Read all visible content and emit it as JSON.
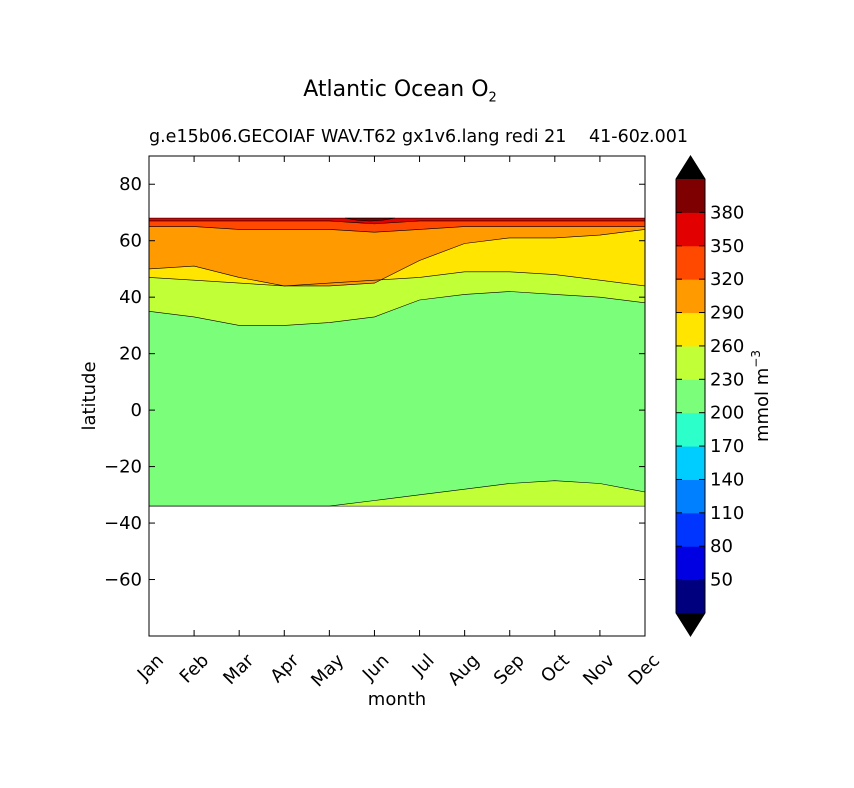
{
  "chart_data": {
    "type": "heatmap",
    "plot_kind": "filled contour",
    "title_main": "Atlantic Ocean O",
    "title_sub": "2",
    "subtitle_left": "g.e15b06.GECOIAF WAV.T62 gx1v6.lang redi 21",
    "subtitle_right": "41-60z.001",
    "xlabel": "month",
    "ylabel": "latitude",
    "x_categories": [
      "Jan",
      "Feb",
      "Mar",
      "Apr",
      "May",
      "Jun",
      "Jul",
      "Aug",
      "Sep",
      "Oct",
      "Nov",
      "Dec"
    ],
    "x_range": [
      0,
      11
    ],
    "ylim": [
      -80,
      90
    ],
    "y_ticks": [
      80,
      60,
      40,
      20,
      0,
      -20,
      -40,
      -60
    ],
    "y_tick_labels": [
      "80",
      "60",
      "40",
      "20",
      "0",
      "−20",
      "−40",
      "−60"
    ],
    "colorbar": {
      "label": "mmol m",
      "label_exponent": "−3",
      "levels": [
        20,
        50,
        80,
        110,
        140,
        170,
        200,
        230,
        260,
        290,
        320,
        350,
        380,
        410
      ],
      "tick_labels": [
        "50",
        "80",
        "110",
        "140",
        "170",
        "200",
        "230",
        "260",
        "290",
        "320",
        "350",
        "380"
      ],
      "colors": [
        "#00007f",
        "#0000e3",
        "#0035ff",
        "#0080ff",
        "#00cdff",
        "#2cffca",
        "#7bff7b",
        "#c1ff36",
        "#ffe500",
        "#ff9a00",
        "#ff4800",
        "#e30000",
        "#7f0000"
      ],
      "extend_low_color": "#000000",
      "extend_high_color": "#000000"
    },
    "fields": {
      "x": [
        0,
        1,
        2,
        3,
        4,
        5,
        6,
        7,
        8,
        9,
        10,
        11
      ],
      "data_south_boundary_lat": -34,
      "data_north_boundary_lat": 68,
      "boundary_200_230": [
        -34,
        -34,
        -34,
        -34,
        -34,
        -32,
        -30,
        -28,
        -26,
        -25,
        -26,
        -29
      ],
      "boundary_230_260": [
        35,
        33,
        30,
        30,
        31,
        33,
        39,
        41,
        42,
        41,
        40,
        38
      ],
      "boundary_260_290": [
        47,
        46,
        45,
        44,
        45,
        46,
        47,
        49,
        49,
        48,
        46,
        44
      ],
      "boundary_290_320": [
        50,
        51,
        47,
        44,
        44,
        45,
        53,
        59,
        61,
        61,
        62,
        64
      ],
      "boundary_320_350": [
        65,
        65,
        64,
        64,
        64,
        63,
        64,
        65,
        65,
        65,
        65,
        65
      ],
      "boundary_350_380": [
        67,
        67,
        67,
        67,
        67,
        66,
        67,
        67,
        67,
        67,
        67,
        67
      ],
      "peak_above_380": {
        "x": 4.9,
        "lat": 67.5,
        "x_halfwidth": 0.55
      }
    }
  }
}
